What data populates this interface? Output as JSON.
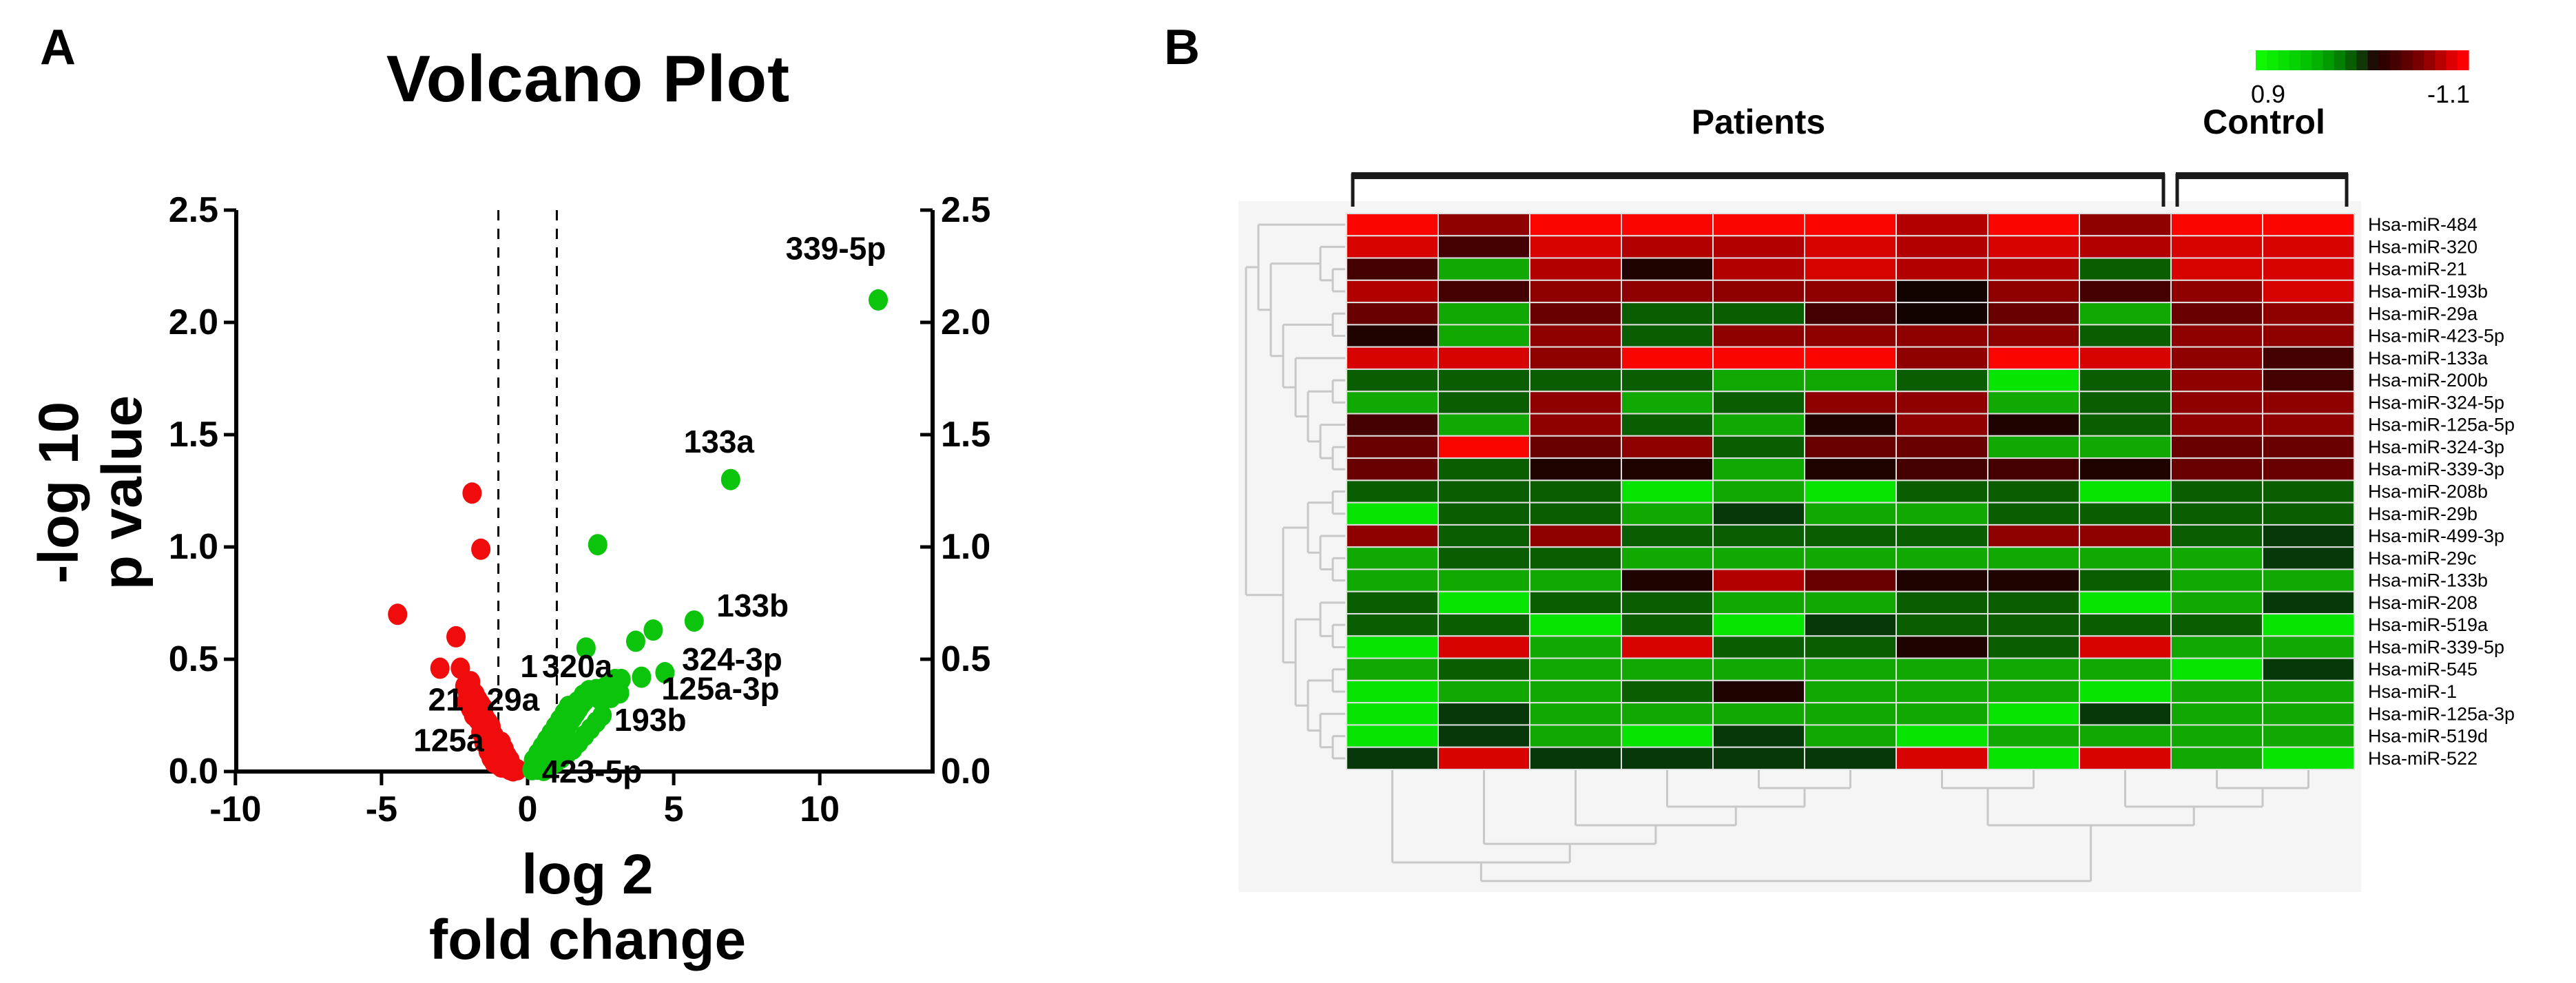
{
  "figure": {
    "background": "#ffffff"
  },
  "panel_a": {
    "label": "A"
  },
  "panel_b": {
    "label": "B"
  },
  "chart_data": [
    {
      "panel": "A",
      "type": "scatter",
      "title": "Volcano Plot",
      "xlabel_line1": "log 2",
      "xlabel_line2": "fold change",
      "ylabel_line1": "-log 10",
      "ylabel_line2": "p value",
      "xlim": [
        -10,
        13.9
      ],
      "ylim": [
        0,
        2.5
      ],
      "x_ticks": [
        -10,
        -5,
        0,
        5,
        10
      ],
      "y_ticks": [
        0,
        0.5,
        1,
        1.5,
        2,
        2.5
      ],
      "threshold_lines_x": [
        -1,
        1
      ],
      "down_color": "#F00C0C",
      "up_color": "#0CC40C",
      "down_points": [
        [
          -4.45,
          0.7
        ],
        [
          -1.9,
          1.24
        ],
        [
          -1.6,
          0.99
        ],
        [
          -2.45,
          0.6
        ],
        [
          -3.0,
          0.46
        ],
        [
          -2.3,
          0.46
        ],
        [
          -2.15,
          0.38
        ],
        [
          -1.95,
          0.4
        ],
        [
          -2.05,
          0.345
        ],
        [
          -1.9,
          0.36
        ],
        [
          -1.8,
          0.345
        ],
        [
          -2.1,
          0.31
        ],
        [
          -1.85,
          0.315
        ],
        [
          -1.7,
          0.32
        ],
        [
          -1.75,
          0.295
        ],
        [
          -1.6,
          0.3
        ],
        [
          -1.95,
          0.28
        ],
        [
          -1.65,
          0.275
        ],
        [
          -1.5,
          0.28
        ],
        [
          -1.55,
          0.255
        ],
        [
          -1.85,
          0.25
        ],
        [
          -1.45,
          0.24
        ],
        [
          -1.7,
          0.23
        ],
        [
          -1.35,
          0.22
        ],
        [
          -1.55,
          0.21
        ],
        [
          -1.25,
          0.2
        ],
        [
          -1.45,
          0.19
        ],
        [
          -1.6,
          0.175
        ],
        [
          -1.3,
          0.17
        ],
        [
          -1.15,
          0.16
        ],
        [
          -1.4,
          0.15
        ],
        [
          -1.2,
          0.14
        ],
        [
          -1.5,
          0.13
        ],
        [
          -1.05,
          0.125
        ],
        [
          -1.3,
          0.115
        ],
        [
          -1.1,
          0.1
        ],
        [
          -1.35,
          0.09
        ],
        [
          -0.95,
          0.09
        ],
        [
          -1.2,
          0.08
        ],
        [
          -1.0,
          0.07
        ],
        [
          -1.25,
          0.06
        ],
        [
          -0.85,
          0.06
        ],
        [
          -1.1,
          0.05
        ],
        [
          -0.9,
          0.045
        ],
        [
          -1.15,
          0.04
        ],
        [
          -0.75,
          0.04
        ],
        [
          -1.0,
          0.03
        ],
        [
          -0.8,
          0.025
        ],
        [
          -0.65,
          0.03
        ],
        [
          -0.9,
          0.02
        ],
        [
          -0.55,
          0.02
        ],
        [
          -0.7,
          0.015
        ],
        [
          -0.45,
          0.015
        ],
        [
          -0.6,
          0.008
        ],
        [
          -0.35,
          0.008
        ],
        [
          -0.5,
          0.003
        ],
        [
          -0.8,
          0.1
        ],
        [
          -0.9,
          0.13
        ],
        [
          -0.7,
          0.07
        ],
        [
          -0.6,
          0.05
        ],
        [
          -2.0,
          0.33
        ]
      ],
      "up_points": [
        [
          12.0,
          2.1
        ],
        [
          6.95,
          1.3
        ],
        [
          2.4,
          1.01
        ],
        [
          5.7,
          0.67
        ],
        [
          4.3,
          0.63
        ],
        [
          3.7,
          0.58
        ],
        [
          2.0,
          0.55
        ],
        [
          4.7,
          0.44
        ],
        [
          3.9,
          0.42
        ],
        [
          3.0,
          0.41
        ],
        [
          0.15,
          0.008
        ],
        [
          0.25,
          0.015
        ],
        [
          0.35,
          0.01
        ],
        [
          0.45,
          0.025
        ],
        [
          0.3,
          0.035
        ],
        [
          0.55,
          0.04
        ],
        [
          0.4,
          0.055
        ],
        [
          0.65,
          0.06
        ],
        [
          0.5,
          0.075
        ],
        [
          0.75,
          0.08
        ],
        [
          0.6,
          0.095
        ],
        [
          0.85,
          0.1
        ],
        [
          0.7,
          0.115
        ],
        [
          0.95,
          0.12
        ],
        [
          0.8,
          0.135
        ],
        [
          1.05,
          0.14
        ],
        [
          0.9,
          0.155
        ],
        [
          1.15,
          0.16
        ],
        [
          1.0,
          0.175
        ],
        [
          1.25,
          0.18
        ],
        [
          1.1,
          0.19
        ],
        [
          1.35,
          0.2
        ],
        [
          1.2,
          0.21
        ],
        [
          1.45,
          0.22
        ],
        [
          1.3,
          0.23
        ],
        [
          1.55,
          0.24
        ],
        [
          1.4,
          0.25
        ],
        [
          1.65,
          0.26
        ],
        [
          1.5,
          0.27
        ],
        [
          1.75,
          0.28
        ],
        [
          1.6,
          0.29
        ],
        [
          1.85,
          0.3
        ],
        [
          1.7,
          0.31
        ],
        [
          1.95,
          0.315
        ],
        [
          2.05,
          0.33
        ],
        [
          1.9,
          0.34
        ],
        [
          2.2,
          0.345
        ],
        [
          2.1,
          0.36
        ],
        [
          2.35,
          0.365
        ],
        [
          2.5,
          0.35
        ],
        [
          2.6,
          0.37
        ],
        [
          2.75,
          0.385
        ],
        [
          2.45,
          0.325
        ],
        [
          2.65,
          0.335
        ],
        [
          2.9,
          0.36
        ],
        [
          3.05,
          0.385
        ],
        [
          2.85,
          0.33
        ],
        [
          0.2,
          0.05
        ],
        [
          0.35,
          0.08
        ],
        [
          0.5,
          0.11
        ],
        [
          0.65,
          0.14
        ],
        [
          0.8,
          0.17
        ],
        [
          0.95,
          0.2
        ],
        [
          1.1,
          0.23
        ],
        [
          1.25,
          0.26
        ],
        [
          1.4,
          0.29
        ],
        [
          0.55,
          0.005
        ],
        [
          0.75,
          0.02
        ],
        [
          0.95,
          0.04
        ],
        [
          1.15,
          0.06
        ],
        [
          1.35,
          0.08
        ],
        [
          1.55,
          0.1
        ],
        [
          1.75,
          0.13
        ],
        [
          1.95,
          0.16
        ],
        [
          2.15,
          0.19
        ],
        [
          2.35,
          0.22
        ],
        [
          2.55,
          0.25
        ],
        [
          3.2,
          0.41
        ],
        [
          3.15,
          0.35
        ]
      ],
      "point_labels": [
        {
          "text": "339-5p",
          "x": 10.55,
          "y": 2.33
        },
        {
          "text": "133a",
          "x": 6.55,
          "y": 1.47
        },
        {
          "text": "133b",
          "x": 7.7,
          "y": 0.74
        },
        {
          "text": "324-3p",
          "x": 7.0,
          "y": 0.5
        },
        {
          "text": "125a-3p",
          "x": 6.6,
          "y": 0.37
        },
        {
          "text": "193b",
          "x": 4.2,
          "y": 0.23
        },
        {
          "text": "320a",
          "x": 1.7,
          "y": 0.47
        },
        {
          "text": "1",
          "x": 0.05,
          "y": 0.47
        },
        {
          "text": "29a",
          "x": -0.5,
          "y": 0.32
        },
        {
          "text": "21",
          "x": -2.8,
          "y": 0.32
        },
        {
          "text": "125a",
          "x": -2.7,
          "y": 0.14
        },
        {
          "text": "423-5p",
          "x": 2.2,
          "y": 0.0
        }
      ]
    },
    {
      "panel": "B",
      "type": "heatmap",
      "groups": [
        {
          "name": "Patients",
          "n_columns": 9
        },
        {
          "name": "Control",
          "n_columns": 2
        }
      ],
      "rows": [
        "Hsa-miR-484",
        "Hsa-miR-320",
        "Hsa-miR-21",
        "Hsa-miR-193b",
        "Hsa-miR-29a",
        "Hsa-miR-423-5p",
        "Hsa-miR-133a",
        "Hsa-miR-200b",
        "Hsa-miR-324-5p",
        "Hsa-miR-125a-5p",
        "Hsa-miR-324-3p",
        "Hsa-miR-339-3p",
        "Hsa-miR-208b",
        "Hsa-miR-29b",
        "Hsa-miR-499-3p",
        "Hsa-miR-29c",
        "Hsa-miR-133b",
        "Hsa-miR-208",
        "Hsa-miR-519a",
        "Hsa-miR-339-5p",
        "Hsa-miR-545",
        "Hsa-miR-1",
        "Hsa-miR-125a-3p",
        "Hsa-miR-519d",
        "Hsa-miR-522"
      ],
      "palette": {
        "BR": "#FB0500",
        "R": "#D60300",
        "R2": "#B20000",
        "DR": "#8F0000",
        "M": "#680000",
        "VM": "#440000",
        "K": "#1F0300",
        "BLK": "#120200",
        "DG": "#0B5E00",
        "G": "#12A802",
        "BG": "#07E402",
        "GK": "#07380A"
      },
      "cells": [
        "BR DR BR BR BR BR R2 BR DR BR BR",
        "R VM R R2 R2 R R2 R R2 R R",
        "VM G R2 K R2 R R2 R2 DG R R",
        "R2 VM DR DR DR DR BLK DR VM DR R",
        "M G M DG DG VM BLK M G M DR",
        "K G DR DG DR DR DR DR DG DR DR",
        "R R DR BR BR BR DR BR R DR VM",
        "DG DG DG DG G G DG BG DG DR VM",
        "G DG DR G DG DR DR G DG DR DR",
        "VM G DR DG G K DR K DG DR DR",
        "M BR M DR DG M M G G M M",
        "M DG K K G K VM VM K M M",
        "DG DG DG BG G BG DG DG BG DG DG",
        "BG DG DG G GK G G DG DG DG DG",
        "DR DG DR DG DG DG DG DR DR DG GK",
        "G DG DG G G G G G G G GK",
        "G G G K R2 M K K DG G G",
        "DG BG DG DG G G DG DG BG G GK",
        "DG DG BG DG BG GK DG DG DG DG BG",
        "BG R G R DG DG K DG R G G",
        "G DG G G G G G G G BG GK",
        "BG G G DG K G G G BG G G",
        "BG GK G G G G G BG GK G G",
        "BG GK G BG GK G BG G G G G",
        "GK R GK GK GK GK R BG R G BG"
      ],
      "colorbar": {
        "left_label": "0.9",
        "right_label": "-1.1",
        "segments": [
          "#0FF703",
          "#0BEC02",
          "#09E002",
          "#07D201",
          "#05C201",
          "#04B001",
          "#039A01",
          "#038001",
          "#0A5E02",
          "#113708",
          "#1C0E04",
          "#300000",
          "#470000",
          "#5E0000",
          "#780000",
          "#960000",
          "#B80000",
          "#DE0000",
          "#FA0000"
        ]
      },
      "row_dendrogram": [
        [
          0,
          [
            [
              1,
              [
                2,
                3
              ]
            ],
            [
              [
                4,
                5
              ],
              [
                6,
                [
                  [
                    7,
                    8
                  ],
                  [
                    9,
                    [
                      10,
                      11
                    ]
                  ]
                ]
              ]
            ]
          ]
        ],
        [
          [
            [
              12,
              13
            ],
            [
              14,
              [
                15,
                16
              ]
            ]
          ],
          [
            [
              17,
              [
                18,
                19
              ]
            ],
            [
              [
                20,
                21
              ],
              [
                22,
                [
                  23,
                  24
                ]
              ]
            ]
          ]
        ]
      ],
      "col_dendrogram": [
        [
          0,
          [
            1,
            [
              2,
              [
                3,
                [
                  4,
                  5
                ]
              ]
            ]
          ]
        ],
        [
          [
            6,
            7
          ],
          [
            8,
            [
              9,
              10
            ]
          ]
        ]
      ]
    }
  ]
}
